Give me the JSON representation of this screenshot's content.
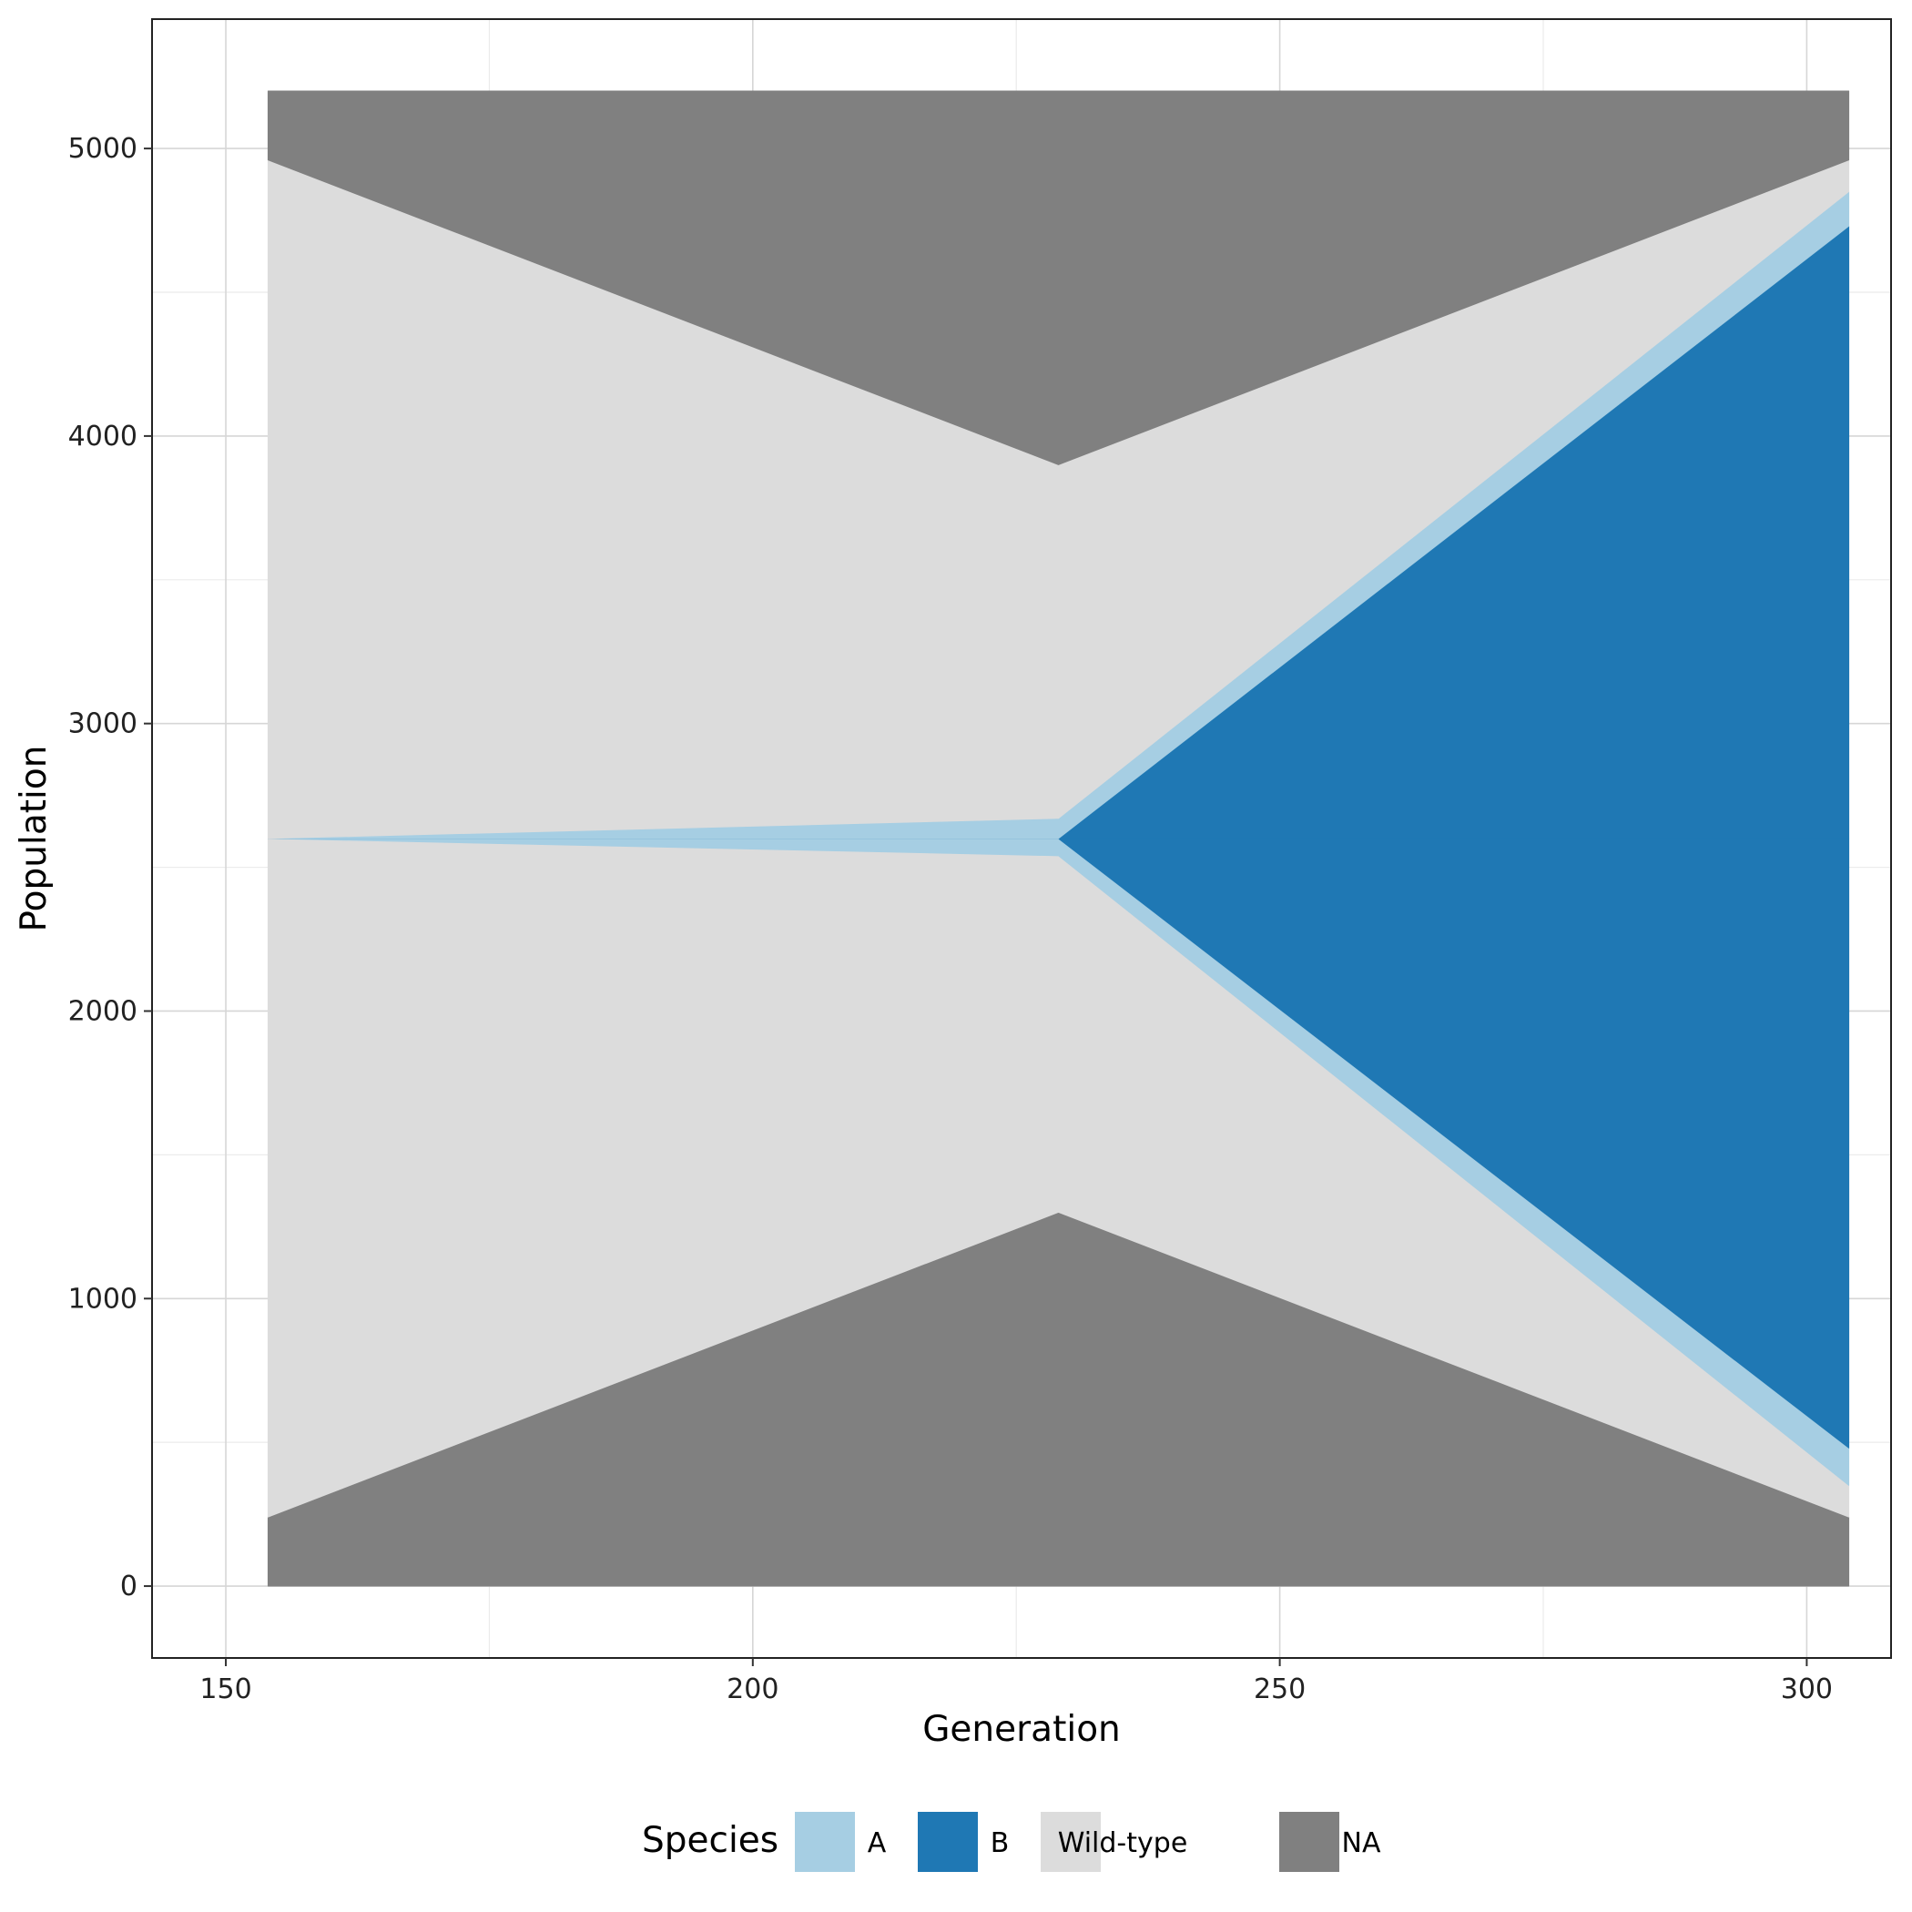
{
  "chart_data": {
    "type": "area",
    "xlabel": "Generation",
    "ylabel": "Population",
    "xlim": [
      143,
      308
    ],
    "ylim": [
      -250,
      5450
    ],
    "x_ticks": [
      150,
      200,
      250,
      300
    ],
    "y_ticks": [
      0,
      1000,
      2000,
      3000,
      4000,
      5000
    ],
    "x_tick_labels": [
      "150",
      "200",
      "250",
      "300"
    ],
    "y_tick_labels": [
      "0",
      "1000",
      "2000",
      "3000",
      "4000",
      "5000"
    ],
    "grid": true,
    "legend": {
      "title": "Species",
      "position": "bottom",
      "entries": [
        {
          "label": "A",
          "color": "#a6cee3"
        },
        {
          "label": "B",
          "color": "#1f78b4"
        },
        {
          "label": "Wild-type",
          "color": "#dcdcdc"
        },
        {
          "label": "NA",
          "color": "#808080"
        }
      ]
    },
    "x": [
      154,
      229,
      304
    ],
    "bands": [
      {
        "name": "NA",
        "color": "#808080",
        "lower": [
          0,
          0,
          0
        ],
        "upper": [
          240,
          1300,
          240
        ]
      },
      {
        "name": "Wild-type",
        "color": "#dcdcdc",
        "lower": [
          240,
          1300,
          240
        ],
        "upper": [
          2600,
          2540,
          350
        ]
      },
      {
        "name": "A",
        "color": "#a6cee3",
        "lower": [
          2600,
          2540,
          350
        ],
        "upper": [
          2600,
          2600,
          480
        ]
      },
      {
        "name": "B",
        "color": "#1f78b4",
        "lower": [
          2600,
          2600,
          480
        ],
        "upper": [
          2600,
          2600,
          2600
        ]
      },
      {
        "name": "B",
        "color": "#1f78b4",
        "lower": [
          2600,
          2600,
          2600
        ],
        "upper": [
          2600,
          2600,
          4730
        ]
      },
      {
        "name": "A",
        "color": "#a6cee3",
        "lower": [
          2600,
          2600,
          4730
        ],
        "upper": [
          2600,
          2670,
          4850
        ]
      },
      {
        "name": "Wild-type",
        "color": "#dcdcdc",
        "lower": [
          2600,
          2670,
          4850
        ],
        "upper": [
          4960,
          3900,
          4960
        ]
      },
      {
        "name": "NA",
        "color": "#808080",
        "lower": [
          4960,
          3900,
          4960
        ],
        "upper": [
          5200,
          5200,
          5200
        ]
      }
    ]
  }
}
